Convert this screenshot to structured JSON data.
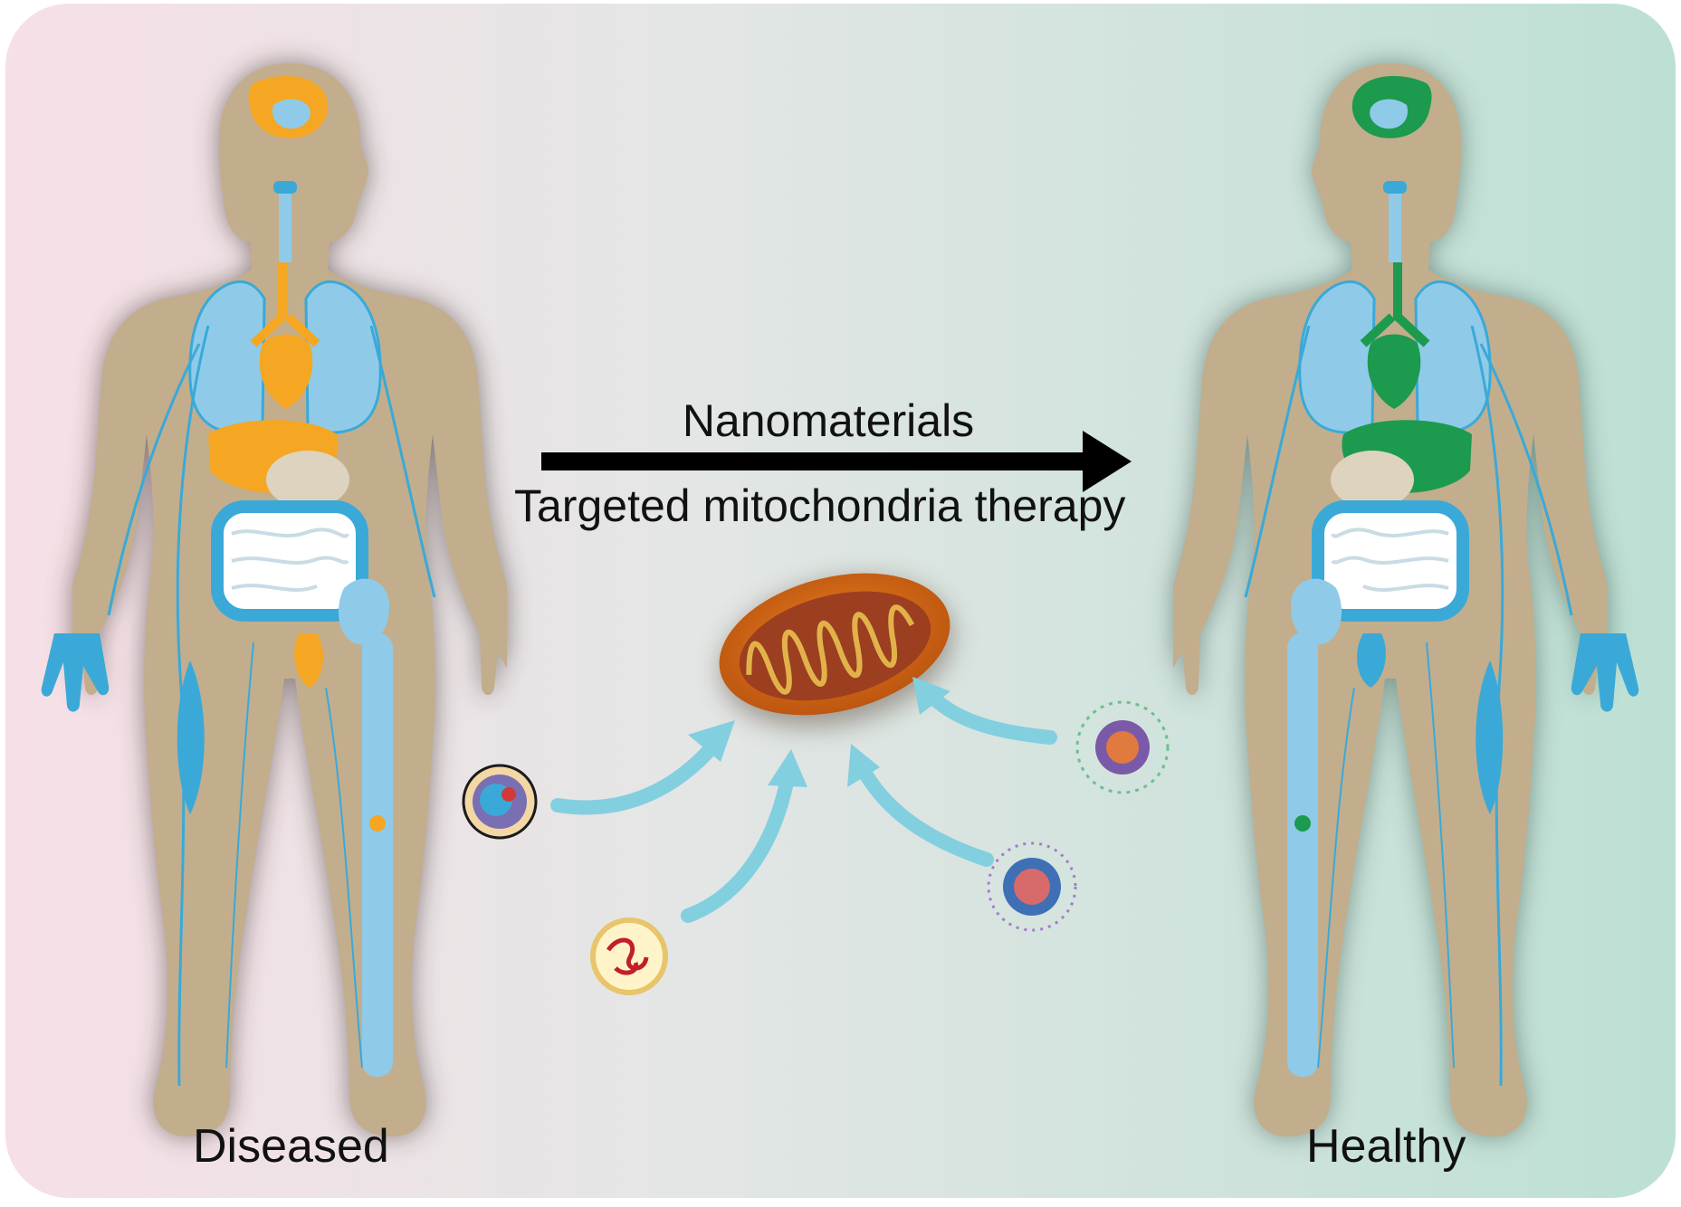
{
  "arrow": {
    "top_label": "Nanomaterials",
    "bottom_label": "Targeted mitochondria therapy"
  },
  "figures": {
    "left_label": "Diseased",
    "right_label": "Healthy"
  },
  "colors": {
    "background_left": "#f6dfe6",
    "background_middle": "#e4e6e5",
    "background_right": "#bde0d4",
    "body": "#c2ae8d",
    "vessel_blue": "#3aa9d8",
    "organ_light_blue": "#8fcbe8",
    "diseased_organ": "#f5a623",
    "healthy_organ": "#1c9a4e",
    "mitochondrion_outer": "#d86a16",
    "mitochondrion_inner": "#9c3e20",
    "targeting_arrow": "#82cfe0"
  },
  "icons": [
    "diseased-body",
    "healthy-body",
    "mitochondrion",
    "nanoparticle",
    "process-arrow"
  ]
}
